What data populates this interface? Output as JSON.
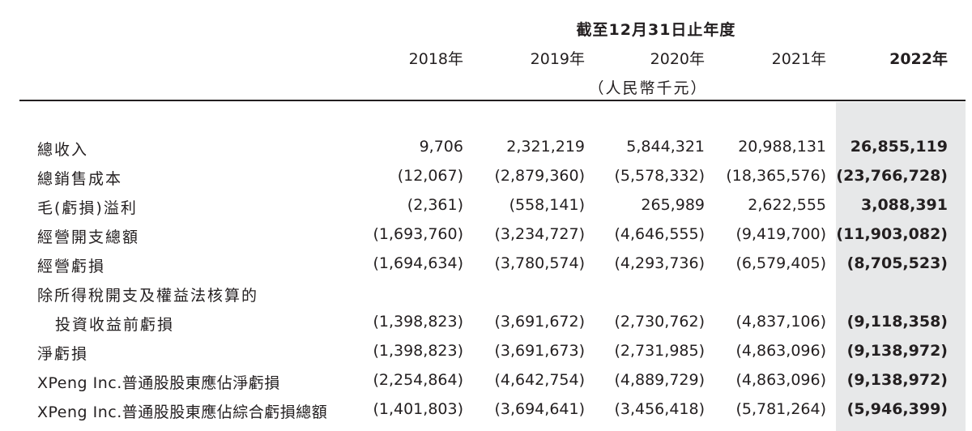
{
  "header": {
    "period_title": "截至12月31日止年度",
    "years": [
      "2018年",
      "2019年",
      "2020年",
      "2021年",
      "2022年"
    ],
    "unit": "（人民幣千元）"
  },
  "rows": [
    {
      "label": "總收入",
      "values": [
        "9,706",
        "2,321,219",
        "5,844,321",
        "20,988,131",
        "26,855,119"
      ]
    },
    {
      "label": "總銷售成本",
      "values": [
        "(12,067)",
        "(2,879,360)",
        "(5,578,332)",
        "(18,365,576)",
        "(23,766,728)"
      ]
    },
    {
      "label": "毛(虧損)溢利",
      "values": [
        "(2,361)",
        "(558,141)",
        "265,989",
        "2,622,555",
        "3,088,391"
      ]
    },
    {
      "label": "經營開支總額",
      "values": [
        "(1,693,760)",
        "(3,234,727)",
        "(4,646,555)",
        "(9,419,700)",
        "(11,903,082)"
      ]
    },
    {
      "label": "經營虧損",
      "values": [
        "(1,694,634)",
        "(3,780,574)",
        "(4,293,736)",
        "(6,579,405)",
        "(8,705,523)"
      ]
    },
    {
      "label": "除所得稅開支及權益法核算的",
      "values": [
        "",
        "",
        "",
        "",
        ""
      ]
    },
    {
      "label": "投資收益前虧損",
      "values": [
        "(1,398,823)",
        "(3,691,672)",
        "(2,730,762)",
        "(4,837,106)",
        "(9,118,358)"
      ]
    },
    {
      "label": "淨虧損",
      "values": [
        "(1,398,823)",
        "(3,691,673)",
        "(2,731,985)",
        "(4,863,096)",
        "(9,138,972)"
      ]
    },
    {
      "label": "XPeng Inc.普通股股東應佔淨虧損",
      "values": [
        "(2,254,864)",
        "(4,642,754)",
        "(4,889,729)",
        "(4,863,096)",
        "(9,138,972)"
      ]
    },
    {
      "label": "XPeng Inc.普通股股東應佔綜合虧損總額",
      "values": [
        "(1,401,803)",
        "(3,694,641)",
        "(3,456,418)",
        "(5,781,264)",
        "(5,946,399)"
      ]
    }
  ],
  "colors": {
    "text": "#231f20",
    "highlight_column": "#e7e8e9"
  }
}
